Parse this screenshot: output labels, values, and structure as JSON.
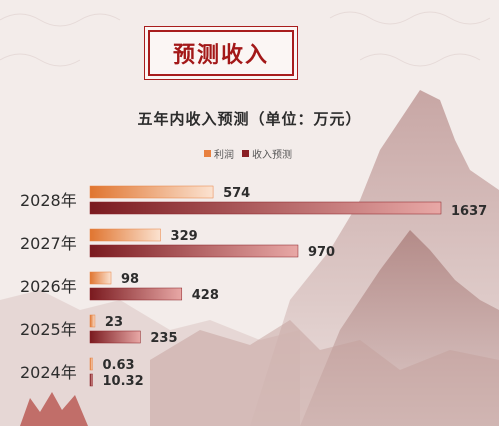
{
  "banner": {
    "title": "预测收入"
  },
  "chart_data": {
    "type": "bar",
    "orientation": "horizontal",
    "title": "五年内收入预测（单位：万元）",
    "categories": [
      "2028年",
      "2027年",
      "2026年",
      "2025年",
      "2024年"
    ],
    "series": [
      {
        "name": "利润",
        "values": [
          574,
          329,
          98,
          23,
          0.63
        ],
        "labels": [
          "574",
          "329",
          "98",
          "23",
          "0.63"
        ],
        "color": "#e8803f"
      },
      {
        "name": "收入预测",
        "values": [
          1637,
          970,
          428,
          235,
          10.32
        ],
        "labels": [
          "1637",
          "970",
          "428",
          "235",
          "10.32"
        ],
        "color": "#8a1f24"
      }
    ],
    "legend": "top-center",
    "grid": false
  }
}
